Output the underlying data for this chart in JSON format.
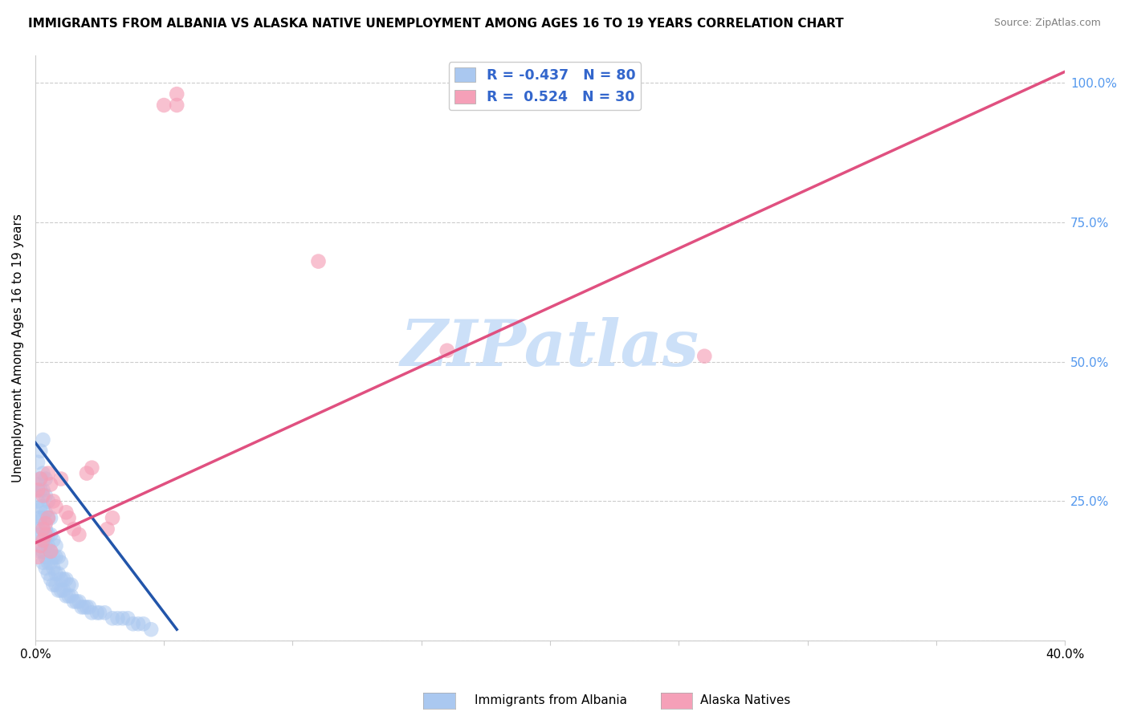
{
  "title": "IMMIGRANTS FROM ALBANIA VS ALASKA NATIVE UNEMPLOYMENT AMONG AGES 16 TO 19 YEARS CORRELATION CHART",
  "source": "Source: ZipAtlas.com",
  "ylabel": "Unemployment Among Ages 16 to 19 years",
  "legend_label_blue": "Immigrants from Albania",
  "legend_label_pink": "Alaska Natives",
  "R_blue": -0.437,
  "N_blue": 80,
  "R_pink": 0.524,
  "N_pink": 30,
  "blue_color": "#aac8f0",
  "blue_line_color": "#2255aa",
  "pink_color": "#f5a0b8",
  "pink_line_color": "#e05080",
  "background_color": "#ffffff",
  "xlim": [
    0.0,
    0.4
  ],
  "ylim": [
    0.0,
    1.05
  ],
  "x_ticks": [
    0.0,
    0.05,
    0.1,
    0.15,
    0.2,
    0.25,
    0.3,
    0.35,
    0.4
  ],
  "x_tick_labels": [
    "0.0%",
    "",
    "",
    "",
    "",
    "",
    "",
    "",
    "40.0%"
  ],
  "y_ticks_right": [
    0.0,
    0.25,
    0.5,
    0.75,
    1.0
  ],
  "y_tick_labels_right": [
    "",
    "25.0%",
    "50.0%",
    "75.0%",
    "100.0%"
  ],
  "blue_scatter_x": [
    0.001,
    0.001,
    0.001,
    0.001,
    0.001,
    0.002,
    0.002,
    0.002,
    0.002,
    0.002,
    0.002,
    0.002,
    0.003,
    0.003,
    0.003,
    0.003,
    0.003,
    0.003,
    0.003,
    0.003,
    0.003,
    0.004,
    0.004,
    0.004,
    0.004,
    0.004,
    0.004,
    0.004,
    0.005,
    0.005,
    0.005,
    0.005,
    0.005,
    0.005,
    0.006,
    0.006,
    0.006,
    0.006,
    0.006,
    0.007,
    0.007,
    0.007,
    0.007,
    0.008,
    0.008,
    0.008,
    0.008,
    0.009,
    0.009,
    0.009,
    0.01,
    0.01,
    0.01,
    0.011,
    0.011,
    0.012,
    0.012,
    0.013,
    0.013,
    0.014,
    0.014,
    0.015,
    0.016,
    0.017,
    0.018,
    0.019,
    0.02,
    0.021,
    0.022,
    0.024,
    0.025,
    0.027,
    0.03,
    0.032,
    0.034,
    0.036,
    0.038,
    0.04,
    0.042,
    0.045
  ],
  "blue_scatter_y": [
    0.2,
    0.22,
    0.25,
    0.28,
    0.32,
    0.16,
    0.19,
    0.22,
    0.24,
    0.27,
    0.29,
    0.34,
    0.14,
    0.16,
    0.18,
    0.2,
    0.22,
    0.24,
    0.27,
    0.3,
    0.36,
    0.13,
    0.15,
    0.17,
    0.2,
    0.23,
    0.26,
    0.29,
    0.12,
    0.14,
    0.17,
    0.19,
    0.22,
    0.25,
    0.11,
    0.14,
    0.16,
    0.19,
    0.22,
    0.1,
    0.13,
    0.15,
    0.18,
    0.1,
    0.12,
    0.15,
    0.17,
    0.09,
    0.12,
    0.15,
    0.09,
    0.11,
    0.14,
    0.09,
    0.11,
    0.08,
    0.11,
    0.08,
    0.1,
    0.08,
    0.1,
    0.07,
    0.07,
    0.07,
    0.06,
    0.06,
    0.06,
    0.06,
    0.05,
    0.05,
    0.05,
    0.05,
    0.04,
    0.04,
    0.04,
    0.04,
    0.03,
    0.03,
    0.03,
    0.02
  ],
  "pink_scatter_x": [
    0.001,
    0.002,
    0.003,
    0.003,
    0.004,
    0.005,
    0.005,
    0.006,
    0.007,
    0.008,
    0.01,
    0.012,
    0.013,
    0.015,
    0.017,
    0.02,
    0.022,
    0.028,
    0.03,
    0.05,
    0.055,
    0.055,
    0.11,
    0.16,
    0.26,
    0.001,
    0.002,
    0.003,
    0.004,
    0.006
  ],
  "pink_scatter_y": [
    0.27,
    0.29,
    0.2,
    0.26,
    0.21,
    0.22,
    0.3,
    0.28,
    0.25,
    0.24,
    0.29,
    0.23,
    0.22,
    0.2,
    0.19,
    0.3,
    0.31,
    0.2,
    0.22,
    0.96,
    0.96,
    0.98,
    0.68,
    0.52,
    0.51,
    0.15,
    0.17,
    0.18,
    0.19,
    0.16
  ],
  "blue_line_x": [
    0.0,
    0.055
  ],
  "blue_line_y": [
    0.355,
    0.02
  ],
  "pink_line_x": [
    0.0,
    0.4
  ],
  "pink_line_y": [
    0.175,
    1.02
  ],
  "watermark": "ZIPatlas",
  "watermark_color": "#cce0f8",
  "grid_color": "#cccccc",
  "legend_R_blue": "R = -0.437",
  "legend_N_blue": "N = 80",
  "legend_R_pink": "R =  0.524",
  "legend_N_pink": "N = 30"
}
